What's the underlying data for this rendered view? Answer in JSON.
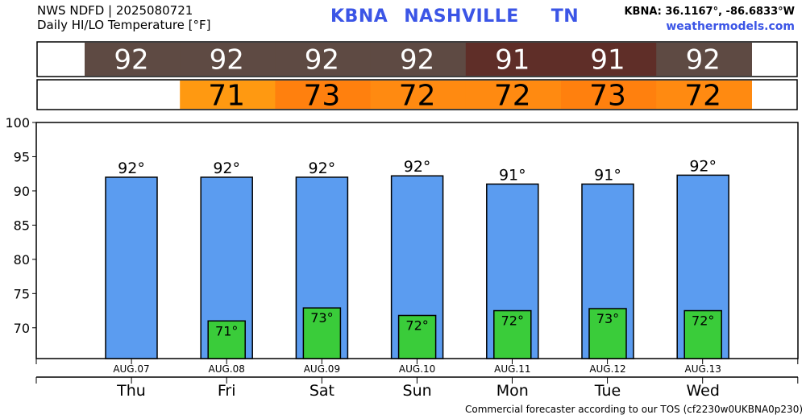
{
  "header": {
    "line1": "NWS NDFD | 2025080721",
    "line2": "Daily HI/LO Temperature [°F]",
    "station": "KBNA",
    "city": "NASHVILLE",
    "state": "TN",
    "coords": "KBNA: 36.1167°, -86.6833°W",
    "site": "weathermodels.com"
  },
  "footer": "Commercial forecaster according to our TOS (cf2230w0UKBNA0p230)",
  "colors": {
    "bar_high": "#5b9cf0",
    "bar_low": "#3acc3a",
    "strip_high_92": "#5e4a43",
    "strip_high_91": "#5f2e28",
    "strip_low_71": "#ff9911",
    "strip_low_72": "#ff8a11",
    "strip_low_73": "#ff800e"
  },
  "chart_data": {
    "type": "bar",
    "title": "Daily HI/LO Temperature [°F]",
    "categories": [
      "AUG.07",
      "AUG.08",
      "AUG.09",
      "AUG.10",
      "AUG.11",
      "AUG.12",
      "AUG.13"
    ],
    "days": [
      "Thu",
      "Fri",
      "Sat",
      "Sun",
      "Mon",
      "Tue",
      "Wed"
    ],
    "series": [
      {
        "name": "HI",
        "values": [
          92.0,
          92.0,
          92.0,
          92.2,
          91.0,
          91.0,
          92.3
        ],
        "labels": [
          "92°",
          "92°",
          "92°",
          "92°",
          "91°",
          "91°",
          "92°"
        ]
      },
      {
        "name": "LO",
        "values": [
          null,
          71.0,
          72.9,
          71.8,
          72.5,
          72.8,
          72.5
        ],
        "labels": [
          "",
          "71°",
          "73°",
          "72°",
          "72°",
          "73°",
          "72°"
        ]
      }
    ],
    "strip_high": [
      "92",
      "92",
      "92",
      "92",
      "91",
      "91",
      "92"
    ],
    "strip_low": [
      "",
      "71",
      "73",
      "72",
      "72",
      "73",
      "72"
    ],
    "yticks": [
      70,
      75,
      80,
      85,
      90,
      95,
      100
    ],
    "ylim": [
      65.5,
      100
    ],
    "grid": false
  }
}
